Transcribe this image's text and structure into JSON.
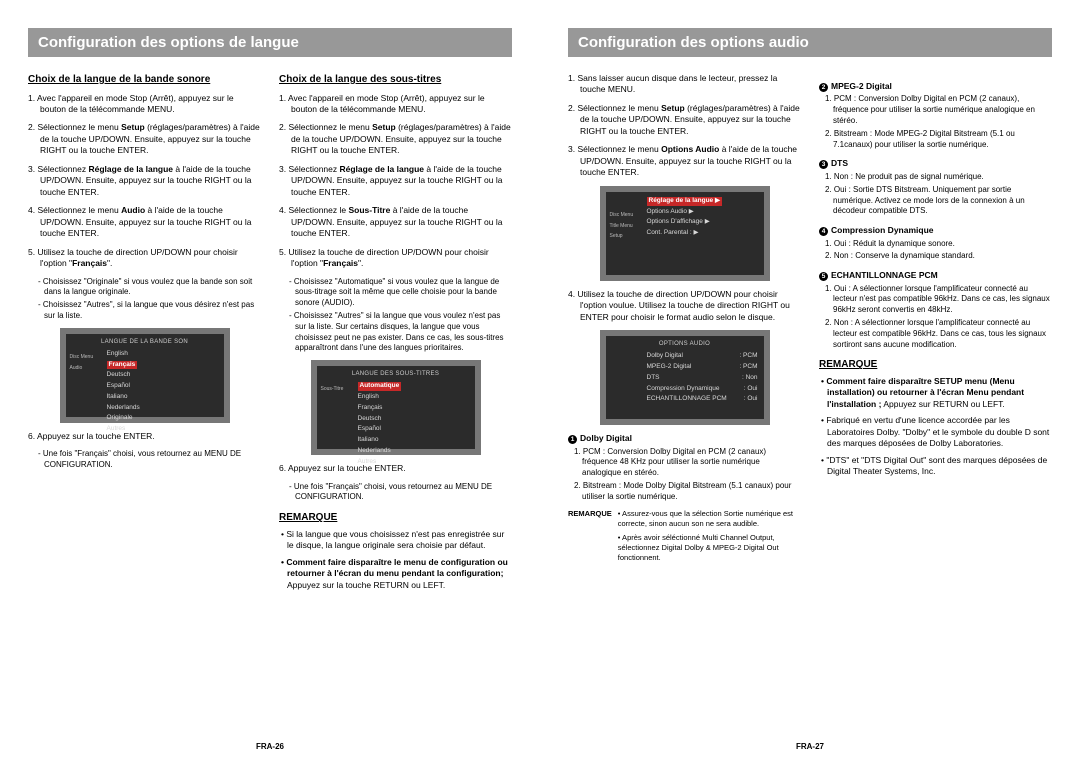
{
  "pages": [
    {
      "banner": "Configuration des options de langue",
      "footer": "FRA-26",
      "columns": [
        {
          "heading": "Choix de la langue de la bande sonore",
          "steps": [
            {
              "n": "1.",
              "t": "Avec l'appareil en mode Stop (Arrêt), appuyez sur le bouton de la télécommande MENU."
            },
            {
              "n": "2.",
              "t": "Sélectionnez le menu ",
              "b": "Setup",
              "t2": " (réglages/paramètres) à l'aide de la touche UP/DOWN. Ensuite, appuyez sur la touche RIGHT ou la touche ENTER."
            },
            {
              "n": "3.",
              "t": "Sélectionnez ",
              "b": "Réglage de la langue",
              "t2": " à l'aide de la touche UP/DOWN. Ensuite, appuyez sur la touche RIGHT ou la touche ENTER."
            },
            {
              "n": "4.",
              "t": "Sélectionnez le menu ",
              "b": "Audio",
              "t2": " à l'aide de la touche UP/DOWN. Ensuite, appuyez sur la touche RIGHT ou la touche ENTER."
            },
            {
              "n": "5.",
              "t": "Utilisez la touche de direction UP/DOWN pour choisir l'option \"",
              "b": "Français",
              "t2": "\".",
              "subs": [
                "- Choisissez \"Originale\" si vous voulez que la bande son soit dans la langue originale.",
                "- Choisissez \"Autres\", si la langue que vous désirez n'est pas sur la liste."
              ]
            }
          ],
          "osd": {
            "title": "LANGUE DE LA BANDE SON",
            "left": [
              "Disc Menu",
              "Audio"
            ],
            "items": [
              "English",
              {
                "hl": "Français"
              },
              "Deutsch",
              "Español",
              "Italiano",
              "Nederlands",
              "Originale",
              "Autres"
            ]
          },
          "after": [
            {
              "n": "6.",
              "t": "Appuyez sur la touche ENTER.",
              "subs": [
                "- Une fois \"Français\" choisi, vous retournez au MENU DE CONFIGURATION."
              ]
            }
          ]
        },
        {
          "heading": "Choix de la langue des sous-titres",
          "steps": [
            {
              "n": "1.",
              "t": "Avec l'appareil en mode Stop (Arrêt), appuyez sur le bouton de la télécommande MENU."
            },
            {
              "n": "2.",
              "t": "Sélectionnez le menu ",
              "b": "Setup",
              "t2": " (réglages/paramètres) à l'aide de la touche UP/DOWN. Ensuite, appuyez sur la touche RIGHT ou la touche ENTER."
            },
            {
              "n": "3.",
              "t": "Sélectionnez ",
              "b": "Réglage de la langue",
              "t2": " à l'aide de la touche UP/DOWN. Ensuite, appuyez sur la touche RIGHT ou la touche ENTER."
            },
            {
              "n": "4.",
              "t": "Sélectionnez le ",
              "b": "Sous-Titre",
              "t2": " à l'aide de la touche UP/DOWN. Ensuite, appuyez sur la touche RIGHT ou la touche ENTER."
            },
            {
              "n": "5.",
              "t": "Utilisez la touche de direction UP/DOWN pour choisir l'option \"",
              "b": "Français",
              "t2": "\".",
              "subs": [
                "- Choisissez \"Automatique\" si vous voulez que la langue de sous-titrage soit la même que celle choisie pour la bande sonore (AUDIO).",
                "- Choisissez \"Autres\" si la langue que vous voulez n'est pas sur la liste. Sur certains disques, la langue que vous choisissez peut ne pas exister. Dans ce cas, les sous-titres apparaîtront dans l'une des langues prioritaires."
              ]
            }
          ],
          "osd": {
            "title": "LANGUE DES SOUS-TITRES",
            "left": [
              "Sous-Titre"
            ],
            "items": [
              {
                "hl": "Automatique"
              },
              "English",
              "Français",
              "Deutsch",
              "Español",
              "Italiano",
              "Nederlands",
              "Autres"
            ]
          },
          "after": [
            {
              "n": "6.",
              "t": "Appuyez sur la touche ENTER.",
              "subs": [
                "- Une fois \"Français\" choisi, vous retournez au MENU DE CONFIGURATION."
              ]
            }
          ],
          "remarque": {
            "label": "REMARQUE",
            "bullets": [
              "• Si la langue que vous choisissez n'est pas enregistrée sur le disque, la langue originale sera choisie par défaut.",
              {
                "b": "• Comment faire disparaître le menu de configuration ou retourner à l'écran du menu pendant la configuration;",
                "t": " Appuyez sur la touche RETURN ou LEFT."
              }
            ]
          }
        }
      ]
    },
    {
      "banner": "Configuration des options audio",
      "footer": "FRA-27",
      "columns": [
        {
          "steps": [
            {
              "n": "1.",
              "t": "Sans laisser aucun disque dans le lecteur, pressez la touche MENU."
            },
            {
              "n": "2.",
              "t": "Sélectionnez le menu ",
              "b": "Setup",
              "t2": " (réglages/paramètres) à l'aide de la touche UP/DOWN. Ensuite, appuyez sur la touche RIGHT ou la touche ENTER."
            },
            {
              "n": "3.",
              "t": "Sélectionnez le menu ",
              "b": "Options Audio",
              "t2": " à l'aide de la touche UP/DOWN. Ensuite, appuyez sur la touche RIGHT ou la touche ENTER."
            }
          ],
          "osd1": {
            "title": "",
            "left": [
              "Disc Menu",
              "Title Menu",
              "",
              "Setup"
            ],
            "menu": [
              {
                "hl": "Réglage de la langue   ▶"
              },
              "Options Audio   ▶",
              "Options D'affichage   ▶",
              "Cont. Parental :   ▶"
            ]
          },
          "mid": [
            {
              "n": "4.",
              "t": "Utilisez la touche de direction UP/DOWN pour choisir l'option voulue. Utilisez la touche de direction RIGHT ou ENTER pour choisir le format audio selon le disque."
            }
          ],
          "osd2": {
            "title": "OPTIONS AUDIO",
            "rows": [
              [
                "Dolby Digital",
                ": PCM"
              ],
              [
                "MPEG-2 Digital",
                ": PCM"
              ],
              [
                "DTS",
                ": Non"
              ],
              [
                "Compression Dynamique",
                ": Oui"
              ],
              [
                "ECHANTILLONNAGE PCM",
                ": Oui"
              ]
            ]
          },
          "enum1": {
            "icon": "1",
            "label": "Dolby Digital",
            "items": [
              "1. PCM : Conversion Dolby Digital en PCM (2 canaux) fréquence 48 KHz pour utiliser la sortie numérique analogique en stéréo.",
              "2. Bitstream : Mode Dolby Digital Bitstream (5.1 canaux) pour utiliser la sortie numérique."
            ]
          },
          "remq": {
            "label": "REMARQUE",
            "items": [
              "• Assurez-vous que la sélection Sortie numérique est correcte, sinon aucun son ne sera audible.",
              "• Après avoir séléctionné Multi Channel Output, sélectionnez Digital Dolby & MPEG-2 Digital Out fonctionnent."
            ]
          }
        },
        {
          "enums": [
            {
              "icon": "2",
              "label": "MPEG-2 Digital",
              "items": [
                "1. PCM : Conversion Dolby Digital en PCM (2 canaux), fréquence pour utiliser la sortie numérique analogique en stéréo.",
                "2. Bitstream : Mode MPEG-2 Digital Bitstream (5.1 ou 7.1canaux) pour utiliser la sortie numérique."
              ]
            },
            {
              "icon": "3",
              "label": "DTS",
              "items": [
                "1. Non : Ne produit pas de signal numérique.",
                "2. Oui : Sortie DTS Bitstream. Uniquement par sortie numérique. Activez ce mode lors de la connexion à un décodeur compatible DTS."
              ]
            },
            {
              "icon": "4",
              "label": "Compression Dynamique",
              "items": [
                "1. Oui : Réduit la dynamique sonore.",
                "2. Non : Conserve la dynamique standard."
              ]
            },
            {
              "icon": "5",
              "label": "ECHANTILLONNAGE PCM",
              "items": [
                "1. Oui : A sélectionner lorsque l'amplificateur connecté au lecteur n'est pas compatible 96kHz. Dans ce cas, les signaux 96kHz seront convertis en 48kHz.",
                "2. Non : A sélectionner lorsque l'amplificateur connecté au lecteur est compatible 96kHz. Dans ce cas, tous les signaux sortiront sans aucune modification."
              ]
            }
          ],
          "remarque": {
            "label": "REMARQUE",
            "bullets": [
              {
                "b": "• Comment faire disparaître SETUP menu (Menu installation) ou retourner à l'écran Menu pendant l'installation ;",
                "t": " Appuyez sur RETURN ou LEFT."
              },
              "• Fabriqué en vertu d'une licence accordée par les Laboratoires Dolby. \"Dolby\" et le symbole du double D sont des marques déposées de Dolby Laboratories.",
              "• \"DTS\" et \"DTS Digital Out\" sont des marques déposées de Digital Theater Systems, Inc."
            ]
          }
        }
      ]
    }
  ]
}
